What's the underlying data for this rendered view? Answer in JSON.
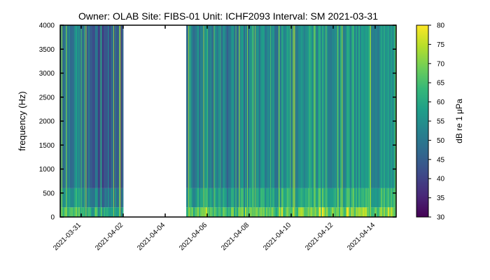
{
  "chart_data": {
    "type": "heatmap",
    "title": "Owner: OLAB   Site: FIBS-01   Unit: ICHF2093   Interval: SM 2021-03-31",
    "ylabel": "frequency (Hz)",
    "xlabel": "",
    "y_range": [
      0,
      4000
    ],
    "y_ticks": [
      "0",
      "500",
      "1000",
      "1500",
      "2000",
      "2500",
      "3000",
      "3500",
      "4000"
    ],
    "x_range": [
      "2021-03-30",
      "2021-04-15"
    ],
    "x_ticks": [
      "2021-03-31",
      "2021-04-02",
      "2021-04-04",
      "2021-04-06",
      "2021-04-08",
      "2021-04-10",
      "2021-04-12",
      "2021-04-14"
    ],
    "colorbar": {
      "label": "dB re 1 μPa",
      "range": [
        30,
        80
      ],
      "ticks": [
        "80",
        "75",
        "70",
        "65",
        "60",
        "55",
        "50",
        "45",
        "40",
        "35",
        "30"
      ],
      "colormap": "viridis",
      "colors": [
        "#440154",
        "#482878",
        "#3e4989",
        "#31688e",
        "#26828e",
        "#1f9e89",
        "#35b779",
        "#6ece58",
        "#b5de2b",
        "#fde725"
      ]
    },
    "recording_segments": [
      {
        "start": "2021-03-30",
        "end": "2021-03-31",
        "level_db": 52
      },
      {
        "start": "2021-03-31",
        "end": "2021-04-01",
        "level_db": 45
      },
      {
        "start": "2021-04-01",
        "end": "2021-04-02",
        "level_db": 44
      },
      {
        "start": "2021-04-05",
        "end": "2021-04-06",
        "level_db": 52
      },
      {
        "start": "2021-04-06",
        "end": "2021-04-07",
        "level_db": 50
      },
      {
        "start": "2021-04-07",
        "end": "2021-04-08",
        "level_db": 52
      },
      {
        "start": "2021-04-08",
        "end": "2021-04-09",
        "level_db": 53
      },
      {
        "start": "2021-04-09",
        "end": "2021-04-10",
        "level_db": 54
      },
      {
        "start": "2021-04-10",
        "end": "2021-04-11",
        "level_db": 55
      },
      {
        "start": "2021-04-11",
        "end": "2021-04-12",
        "level_db": 56
      },
      {
        "start": "2021-04-12",
        "end": "2021-04-13",
        "level_db": 56
      },
      {
        "start": "2021-04-13",
        "end": "2021-04-14",
        "level_db": 55
      },
      {
        "start": "2021-04-14",
        "end": "2021-04-15",
        "level_db": 55
      }
    ],
    "grid": false,
    "legend": "colorbar-right"
  }
}
